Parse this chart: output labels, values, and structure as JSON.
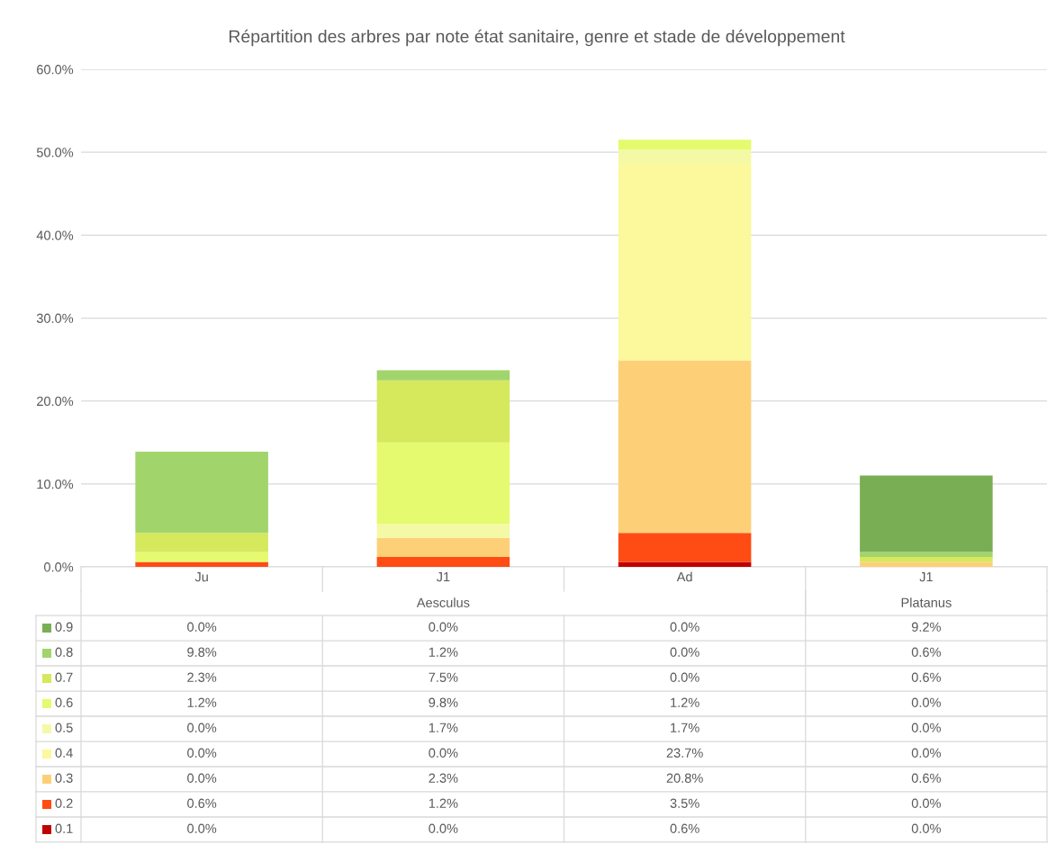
{
  "chart_data": {
    "type": "bar",
    "stacked": true,
    "title": "Répartition des arbres par note état sanitaire, genre et stade de développement",
    "categories": [
      "Ju",
      "J1",
      "Ad",
      "J1"
    ],
    "annotations": [
      "Aesculus",
      "Platanus"
    ],
    "series": [
      {
        "name": "0.1",
        "color": "#c00000",
        "values": [
          0.0,
          0.0,
          0.6,
          0.0
        ],
        "value_labels": [
          "0.0%",
          "0.0%",
          "0.6%",
          "0.0%"
        ]
      },
      {
        "name": "0.2",
        "color": "#ff4b14",
        "values": [
          0.6,
          1.2,
          3.5,
          0.0
        ],
        "value_labels": [
          "0.6%",
          "1.2%",
          "3.5%",
          "0.0%"
        ]
      },
      {
        "name": "0.3",
        "color": "#fdd078",
        "values": [
          0.0,
          2.3,
          20.8,
          0.6
        ],
        "value_labels": [
          "0.0%",
          "2.3%",
          "20.8%",
          "0.6%"
        ]
      },
      {
        "name": "0.4",
        "color": "#fcf89c",
        "values": [
          0.0,
          0.0,
          23.7,
          0.0
        ],
        "value_labels": [
          "0.0%",
          "0.0%",
          "23.7%",
          "0.0%"
        ]
      },
      {
        "name": "0.5",
        "color": "#f4f9a6",
        "values": [
          0.0,
          1.7,
          1.7,
          0.0
        ],
        "value_labels": [
          "0.0%",
          "1.7%",
          "1.7%",
          "0.0%"
        ]
      },
      {
        "name": "0.6",
        "color": "#e5fa6e",
        "values": [
          1.2,
          9.8,
          1.2,
          0.0
        ],
        "value_labels": [
          "1.2%",
          "9.8%",
          "1.2%",
          "0.0%"
        ]
      },
      {
        "name": "0.7",
        "color": "#d6e85c",
        "values": [
          2.3,
          7.5,
          0.0,
          0.6
        ],
        "value_labels": [
          "2.3%",
          "7.5%",
          "0.0%",
          "0.6%"
        ]
      },
      {
        "name": "0.8",
        "color": "#a2d46c",
        "values": [
          9.8,
          1.2,
          0.0,
          0.6
        ],
        "value_labels": [
          "9.8%",
          "1.2%",
          "0.0%",
          "0.6%"
        ]
      },
      {
        "name": "0.9",
        "color": "#7aae55",
        "values": [
          0.0,
          0.0,
          0.0,
          9.2
        ],
        "value_labels": [
          "0.0%",
          "0.0%",
          "0.0%",
          "9.2%"
        ]
      }
    ],
    "ylim": [
      0,
      60
    ],
    "yticks": [
      {
        "value": 0,
        "label": "0.0%"
      },
      {
        "value": 10,
        "label": "10.0%"
      },
      {
        "value": 20,
        "label": "20.0%"
      },
      {
        "value": 30,
        "label": "30.0%"
      },
      {
        "value": 40,
        "label": "40.0%"
      },
      {
        "value": 50,
        "label": "50.0%"
      },
      {
        "value": 60,
        "label": "60.0%"
      }
    ],
    "grid": "y",
    "legend": "bottom"
  }
}
